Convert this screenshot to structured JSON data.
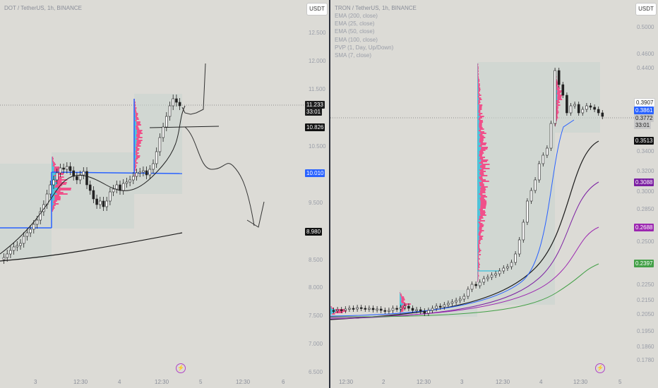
{
  "left_chart": {
    "symbol": "DOT / TetherUS, 1h, BINANCE",
    "currency_button": "USDT",
    "price_scale": [
      "12.500",
      "12.000",
      "11.500",
      "10.500",
      "9.500",
      "8.500",
      "8.000",
      "7.500",
      "7.000",
      "6.500"
    ],
    "badges": {
      "current_price": "11.233",
      "countdown": "33:01",
      "level_1": "10.826",
      "level_2": "10.010",
      "level_3": "8.980"
    },
    "time_axis": [
      "3",
      "12:30",
      "4",
      "12:30",
      "5",
      "12:30",
      "6"
    ]
  },
  "right_chart": {
    "symbol": "TRON / TetherUS, 1h, BINANCE",
    "indicators": [
      "EMA (200, close)",
      "EMA (25, close)",
      "EMA (50, close)",
      "EMA (100, close)",
      "PVP (1, Day, Up/Down)",
      "SMA (7, close)"
    ],
    "currency_button": "USDT",
    "price_scale": [
      "0.5000",
      "0.4600",
      "0.4400",
      "0.3400",
      "0.3200",
      "0.3000",
      "0.2850",
      "0.2500",
      "0.2250",
      "0.2150",
      "0.2050",
      "0.1950",
      "0.1860",
      "0.1780"
    ],
    "badges": {
      "level_top": "0.3907",
      "level_blue": "0.3861",
      "current_price": "0.3772",
      "countdown": "33:01",
      "ema_200": "0.3513",
      "ema_100": "0.3088",
      "ema_50": "0.2688",
      "ema_25": "0.2397"
    },
    "time_axis": [
      "12:30",
      "2",
      "12:30",
      "3",
      "12:30",
      "4",
      "12:30",
      "5"
    ]
  },
  "colors": {
    "background": "#dcdbd6",
    "candle": "#2a2a2a",
    "volume_profile_up": "#4fc3d9",
    "volume_profile_down": "#f0508a",
    "poc_line": "#2962ff",
    "ema_200": "#1a1a1a",
    "ema_100": "#9c27b0",
    "ema_50": "#7e57c2",
    "ema_25": "#43a047",
    "ema_blue": "#2962ff"
  },
  "icons": [
    "flash-icon"
  ]
}
